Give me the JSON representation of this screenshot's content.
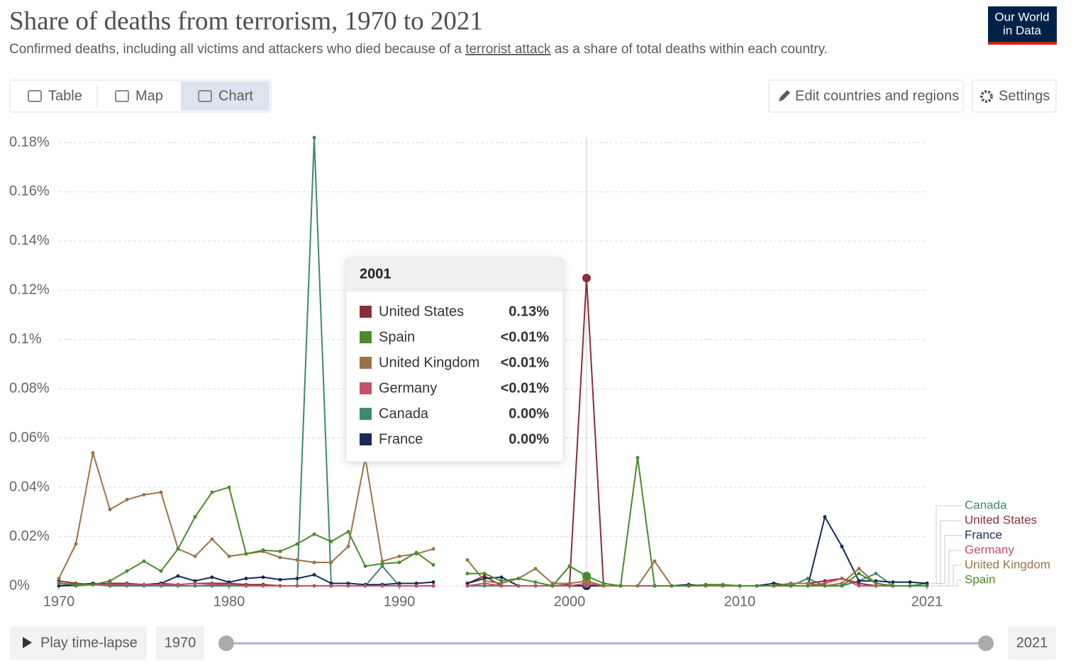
{
  "header": {
    "title": "Share of deaths from terrorism, 1970 to 2021",
    "subtitle_before": "Confirmed deaths, including all victims and attackers who died because of a",
    "subtitle_link": "terrorist attack",
    "subtitle_after": "as a share of total deaths within each country.",
    "logo_line1": "Our World",
    "logo_line2": "in Data"
  },
  "controls": {
    "tabs": [
      "Table",
      "Map",
      "Chart"
    ],
    "active_tab": 2,
    "edit": "Edit countries and regions",
    "settings": "Settings",
    "play": "Play time-lapse"
  },
  "chart_data": {
    "type": "line",
    "x": [
      1970,
      1971,
      1972,
      1973,
      1974,
      1975,
      1976,
      1977,
      1978,
      1979,
      1980,
      1981,
      1982,
      1983,
      1984,
      1985,
      1986,
      1987,
      1988,
      1989,
      1990,
      1991,
      1992,
      1993,
      1994,
      1995,
      1996,
      1997,
      1998,
      1999,
      2000,
      2001,
      2002,
      2003,
      2004,
      2005,
      2006,
      2007,
      2008,
      2009,
      2010,
      2011,
      2012,
      2013,
      2014,
      2015,
      2016,
      2017,
      2018,
      2019,
      2020,
      2021
    ],
    "xlim": [
      1970,
      2021
    ],
    "xticks": [
      1970,
      1980,
      1990,
      2000,
      2010,
      2021
    ],
    "ylim": [
      0,
      0.18
    ],
    "yticks": [
      {
        "value": 0,
        "label": "0%"
      },
      {
        "value": 0.02,
        "label": "0.02%"
      },
      {
        "value": 0.04,
        "label": "0.04%"
      },
      {
        "value": 0.06,
        "label": "0.06%"
      },
      {
        "value": 0.08,
        "label": "0.08%"
      },
      {
        "value": 0.1,
        "label": "0.1%"
      },
      {
        "value": 0.12,
        "label": "0.12%"
      },
      {
        "value": 0.14,
        "label": "0.14%"
      },
      {
        "value": 0.16,
        "label": "0.16%"
      },
      {
        "value": 0.18,
        "label": "0.18%"
      }
    ],
    "grid": true,
    "legend": "right",
    "tooltip": {
      "x": 2001
    },
    "series": [
      {
        "name": "Canada",
        "color": "#3c8a6e",
        "values": [
          0,
          0,
          0.0005,
          0,
          0,
          0,
          0,
          0,
          0,
          0,
          0,
          0,
          0.0005,
          0,
          0,
          0.182,
          0,
          0,
          0,
          0.008,
          0,
          0,
          0,
          null,
          0,
          0,
          0,
          0,
          0,
          0,
          0,
          0,
          0,
          0,
          0,
          0,
          0,
          0,
          0,
          0,
          0,
          0,
          0,
          0,
          0.003,
          0,
          0,
          0.002,
          0.005,
          0,
          0,
          0.001
        ],
        "value_labels": [
          null,
          null,
          null,
          null,
          null,
          null,
          null,
          null,
          null,
          null,
          null,
          null,
          null,
          null,
          null,
          null,
          null,
          null,
          null,
          null,
          null,
          null,
          null,
          null,
          null,
          null,
          null,
          null,
          null,
          null,
          null,
          "0.00%",
          null,
          null,
          null,
          null,
          null,
          null,
          null,
          null,
          null,
          null,
          null,
          null,
          null,
          null,
          null,
          null,
          null,
          null,
          null,
          null
        ]
      },
      {
        "name": "United States",
        "color": "#883039",
        "values": [
          0.002,
          0.001,
          0.0005,
          0.001,
          0.001,
          0.0005,
          0.001,
          0.0005,
          0.001,
          0.001,
          0.001,
          0.0005,
          0.0005,
          0,
          0,
          0,
          0,
          0,
          0,
          0,
          0,
          0,
          0,
          null,
          0.001,
          0.004,
          0,
          0,
          0,
          0,
          0.0005,
          0.125,
          0,
          0,
          0,
          0,
          0,
          0,
          0,
          0,
          0,
          0,
          0,
          0.001,
          0.001,
          0.002,
          0.003,
          0.001,
          0,
          0,
          0,
          0
        ],
        "value_labels": [
          null,
          null,
          null,
          null,
          null,
          null,
          null,
          null,
          null,
          null,
          null,
          null,
          null,
          null,
          null,
          null,
          null,
          null,
          null,
          null,
          null,
          null,
          null,
          null,
          null,
          null,
          null,
          null,
          null,
          null,
          null,
          "0.13%",
          null,
          null,
          null,
          null,
          null,
          null,
          null,
          null,
          null,
          null,
          null,
          null,
          null,
          null,
          null,
          null,
          null,
          null,
          null,
          null
        ]
      },
      {
        "name": "France",
        "color": "#18295c",
        "values": [
          0,
          0.0005,
          0.001,
          0.0005,
          0.0005,
          0.0005,
          0.001,
          0.004,
          0.002,
          0.0035,
          0.0015,
          0.003,
          0.0035,
          0.0025,
          0.003,
          0.0045,
          0.001,
          0.001,
          0.0005,
          0.0005,
          0.001,
          0.001,
          0.0015,
          null,
          0.001,
          0.003,
          0.0035,
          0,
          0,
          0,
          0,
          0,
          0,
          0,
          0,
          0,
          0,
          0.0005,
          0,
          0,
          0,
          0,
          0.001,
          0,
          0,
          0.028,
          0.016,
          0.002,
          0.002,
          0.0015,
          0.0015,
          0.001
        ],
        "value_labels": [
          null,
          null,
          null,
          null,
          null,
          null,
          null,
          null,
          null,
          null,
          null,
          null,
          null,
          null,
          null,
          null,
          null,
          null,
          null,
          null,
          null,
          null,
          null,
          null,
          null,
          null,
          null,
          null,
          null,
          null,
          null,
          "0.00%",
          null,
          null,
          null,
          null,
          null,
          null,
          null,
          null,
          null,
          null,
          null,
          null,
          null,
          null,
          null,
          null,
          null,
          null,
          null,
          null
        ]
      },
      {
        "name": "Germany",
        "color": "#c05367",
        "values": [
          0.001,
          0.0005,
          0.0005,
          0.0005,
          0.0005,
          0.0005,
          0.0005,
          0.0005,
          0.001,
          0.0005,
          0.0005,
          0,
          0,
          0,
          0,
          0,
          0,
          0,
          0,
          0,
          0,
          0,
          0,
          null,
          0,
          0.001,
          0,
          0,
          0,
          0,
          0,
          0.001,
          0,
          0,
          0,
          0,
          0,
          0,
          0,
          0,
          0,
          0,
          0,
          0,
          0,
          0.001,
          0.003,
          0,
          0,
          0,
          0,
          0
        ],
        "value_labels": [
          null,
          null,
          null,
          null,
          null,
          null,
          null,
          null,
          null,
          null,
          null,
          null,
          null,
          null,
          null,
          null,
          null,
          null,
          null,
          null,
          null,
          null,
          null,
          null,
          null,
          null,
          null,
          null,
          null,
          null,
          null,
          "<0.01%",
          null,
          null,
          null,
          null,
          null,
          null,
          null,
          null,
          null,
          null,
          null,
          null,
          null,
          null,
          null,
          null,
          null,
          null,
          null,
          null
        ]
      },
      {
        "name": "United Kingdom",
        "color": "#9a7446",
        "values": [
          0.003,
          0.017,
          0.054,
          0.031,
          0.035,
          0.037,
          0.038,
          0.015,
          0.012,
          0.019,
          0.012,
          0.013,
          0.014,
          0.0115,
          0.0105,
          0.0095,
          0.0095,
          0.016,
          0.052,
          0.01,
          0.012,
          0.013,
          0.015,
          null,
          0.0105,
          0.002,
          0.001,
          0.003,
          0.007,
          0.001,
          0.001,
          0.002,
          0,
          0,
          0,
          0.01,
          0,
          0,
          0,
          0,
          0,
          0,
          0,
          0.001,
          0.001,
          0,
          0.001,
          0.007,
          0.001,
          0,
          0,
          0
        ],
        "value_labels": [
          null,
          null,
          null,
          null,
          null,
          null,
          null,
          null,
          null,
          null,
          null,
          null,
          null,
          null,
          null,
          null,
          null,
          null,
          null,
          null,
          null,
          null,
          null,
          null,
          null,
          null,
          null,
          null,
          null,
          null,
          null,
          "<0.01%",
          null,
          null,
          null,
          null,
          null,
          null,
          null,
          null,
          null,
          null,
          null,
          null,
          null,
          null,
          null,
          null,
          null,
          null,
          null,
          null
        ]
      },
      {
        "name": "Spain",
        "color": "#4a8a2a",
        "values": [
          0.001,
          0.0005,
          0.0005,
          0.002,
          0.006,
          0.01,
          0.006,
          0.015,
          0.028,
          0.038,
          0.04,
          0.013,
          0.0145,
          0.014,
          0.017,
          0.021,
          0.018,
          0.022,
          0.008,
          0.009,
          0.0095,
          0.0135,
          0.0085,
          null,
          0.005,
          0.005,
          0.002,
          0.003,
          0.0015,
          0,
          0.008,
          0.004,
          0.001,
          0,
          0.052,
          0,
          0,
          0,
          0.0005,
          0.0005,
          0,
          0,
          0,
          0,
          0,
          0,
          0,
          0.005,
          0.001,
          0,
          0,
          0
        ],
        "value_labels": [
          null,
          null,
          null,
          null,
          null,
          null,
          null,
          null,
          null,
          null,
          null,
          null,
          null,
          null,
          null,
          null,
          null,
          null,
          null,
          null,
          null,
          null,
          null,
          null,
          null,
          null,
          null,
          null,
          null,
          null,
          null,
          "<0.01%",
          null,
          null,
          null,
          null,
          null,
          null,
          null,
          null,
          null,
          null,
          null,
          null,
          null,
          null,
          null,
          null,
          null,
          null,
          null,
          null
        ]
      }
    ]
  }
}
